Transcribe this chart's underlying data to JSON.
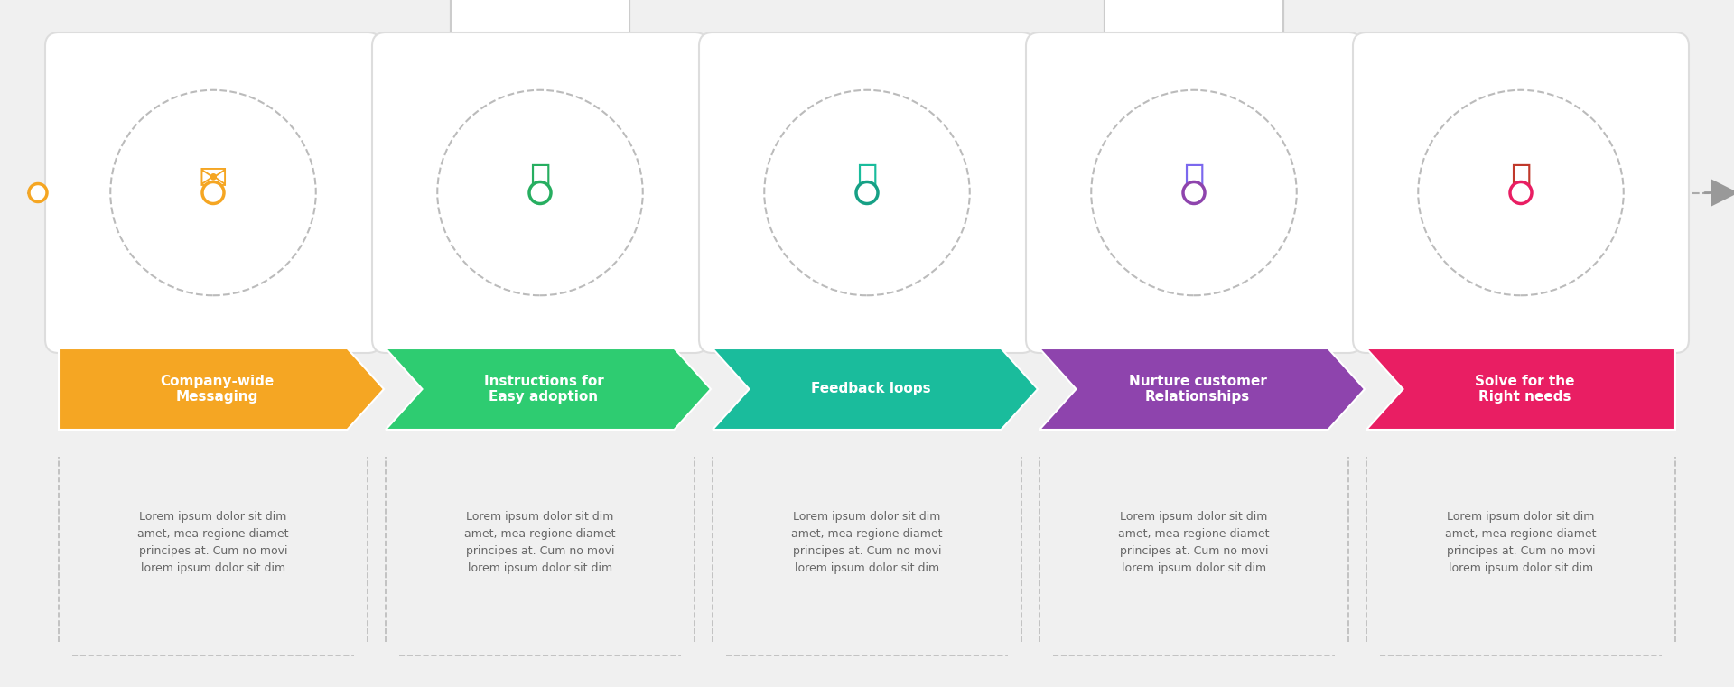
{
  "bg_color": "#f0f0f0",
  "steps": [
    {
      "title": "Company-wide\nMessaging",
      "color": "#f5a623",
      "dot_color": "#f5a623",
      "text": "Lorem ipsum dolor sit dim\namet, mea regione diamet\nprincipes at. Cum no movi\nlorem ipsum dolor sit dim"
    },
    {
      "title": "Instructions for\nEasy adoption",
      "color": "#2ecc71",
      "dot_color": "#27ae60",
      "text": "Lorem ipsum dolor sit dim\namet, mea regione diamet\nprincipes at. Cum no movi\nlorem ipsum dolor sit dim"
    },
    {
      "title": "Feedback loops",
      "color": "#1abc9c",
      "dot_color": "#16a085",
      "text": "Lorem ipsum dolor sit dim\namet, mea regione diamet\nprincipes at. Cum no movi\nlorem ipsum dolor sit dim"
    },
    {
      "title": "Nurture customer\nRelationships",
      "color": "#8e44ad",
      "dot_color": "#8e44ad",
      "text": "Lorem ipsum dolor sit dim\namet, mea regione diamet\nprincipes at. Cum no movi\nlorem ipsum dolor sit dim"
    },
    {
      "title": "Solve for the\nRight needs",
      "color": "#e91e63",
      "dot_color": "#e91e63",
      "text": "Lorem ipsum dolor sit dim\namet, mea regione diamet\nprincipes at. Cum no movi\nlorem ipsum dolor sit dim"
    }
  ],
  "arrow_colors": [
    "#f5a623",
    "#2ecc71",
    "#1abc9c",
    "#8e44ad",
    "#e91e63"
  ],
  "icon_colors": [
    "#f5a623",
    "#27ae60",
    "#1abc9c",
    "#7b68ee",
    "#c0392b"
  ],
  "line_color": "#cccccc",
  "dashed_color": "#aaaaaa"
}
